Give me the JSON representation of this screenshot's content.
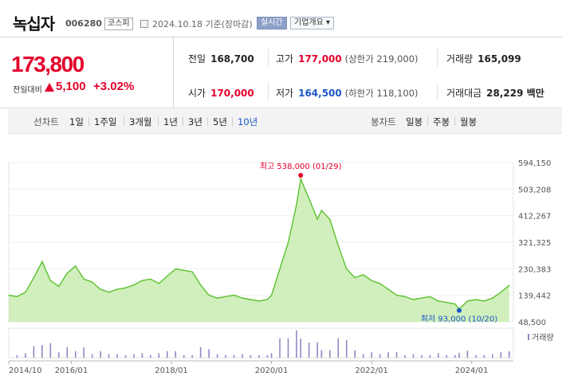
{
  "header": {
    "name": "녹십자",
    "code": "006280",
    "market_tag": "코스피",
    "date_text": "2024.10.18 기준(장마감)",
    "realtime_label": "실시간",
    "overview_label": "기업개요 ▾"
  },
  "price": {
    "current": "173,800",
    "change_label": "전일대비",
    "change_amount": "5,100",
    "change_pct": "+3.02%"
  },
  "stats": {
    "prev_close_label": "전일",
    "prev_close": "168,700",
    "high_label": "고가",
    "high": "177,000",
    "upper_limit": "(상한가 219,000)",
    "volume_label": "거래량",
    "volume": "165,099",
    "open_label": "시가",
    "open": "170,000",
    "low_label": "저가",
    "low": "164,500",
    "lower_limit": "(하한가 118,100)",
    "amount_label": "거래대금",
    "amount": "28,229 백만"
  },
  "toolbar": {
    "line_label": "선차트",
    "ranges": [
      "1일",
      "1주일",
      "3개월",
      "1년",
      "3년",
      "5년",
      "10년"
    ],
    "active_range": "10년",
    "candle_label": "봉차트",
    "candles": [
      "일봉",
      "주봉",
      "월봉"
    ]
  },
  "chart_data": {
    "type": "area",
    "y_ticks": [
      "594,150",
      "503,208",
      "412,267",
      "321,325",
      "230,383",
      "139,442",
      "48,500"
    ],
    "x_ticks": [
      "2014/10",
      "2016/01",
      "2018/01",
      "2020/01",
      "2022/01",
      "2024/01"
    ],
    "volume_label": "거래량",
    "max_label": "최고 538,000 (01/29)",
    "min_label": "최저 93,000 (10/20)",
    "ylim": [
      48500,
      594150
    ],
    "line_color": "#5cc02f",
    "fill_color": "#c8ecb0",
    "volume_color": "#9686c4",
    "x": [
      "2014/10",
      "2014/12",
      "2015/02",
      "2015/04",
      "2015/06",
      "2015/08",
      "2015/10",
      "2015/12",
      "2016/02",
      "2016/04",
      "2016/06",
      "2016/08",
      "2016/10",
      "2016/12",
      "2017/02",
      "2017/04",
      "2017/06",
      "2017/08",
      "2017/10",
      "2017/12",
      "2018/02",
      "2018/04",
      "2018/06",
      "2018/08",
      "2018/10",
      "2018/12",
      "2019/02",
      "2019/04",
      "2019/06",
      "2019/08",
      "2019/10",
      "2019/12",
      "2020/01",
      "2020/03",
      "2020/05",
      "2020/07",
      "2020/08",
      "2020/10",
      "2020/12",
      "2021/01",
      "2021/03",
      "2021/05",
      "2021/07",
      "2021/09",
      "2021/11",
      "2022/01",
      "2022/03",
      "2022/05",
      "2022/07",
      "2022/09",
      "2022/11",
      "2023/01",
      "2023/03",
      "2023/05",
      "2023/07",
      "2023/09",
      "2023/10",
      "2023/12",
      "2024/02",
      "2024/04",
      "2024/06",
      "2024/08",
      "2024/10"
    ],
    "values": [
      140000,
      135000,
      150000,
      200000,
      255000,
      190000,
      170000,
      215000,
      240000,
      195000,
      185000,
      160000,
      150000,
      160000,
      165000,
      175000,
      190000,
      195000,
      180000,
      205000,
      230000,
      225000,
      220000,
      175000,
      140000,
      130000,
      135000,
      140000,
      130000,
      125000,
      120000,
      125000,
      140000,
      230000,
      320000,
      450000,
      538000,
      470000,
      400000,
      430000,
      400000,
      310000,
      230000,
      200000,
      210000,
      190000,
      180000,
      160000,
      140000,
      135000,
      125000,
      130000,
      135000,
      120000,
      115000,
      110000,
      93000,
      120000,
      125000,
      120000,
      130000,
      150000,
      173800
    ]
  }
}
